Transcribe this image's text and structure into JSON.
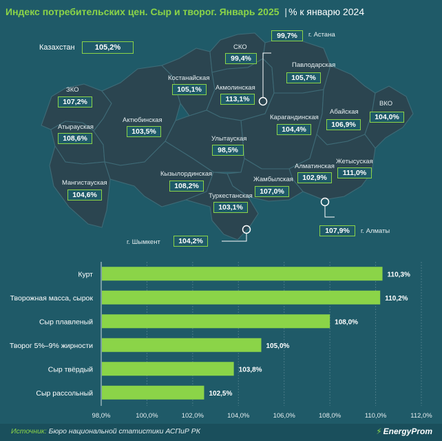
{
  "header": {
    "title": "Индекс потребительских цен. Сыр и творог. Январь 2025",
    "separator": "|",
    "subtitle": "% к январю 2024"
  },
  "country": {
    "label": "Казахстан",
    "value": "105,2%"
  },
  "regions": [
    {
      "id": "zko",
      "name": "ЗКО",
      "value": "107,2%"
    },
    {
      "id": "atyrau",
      "name": "Атырауская",
      "value": "108,6%"
    },
    {
      "id": "mangystau",
      "name": "Мангистауская",
      "value": "104,6%"
    },
    {
      "id": "aktobe",
      "name": "Актюбинская",
      "value": "103,5%"
    },
    {
      "id": "kostanay",
      "name": "Костанайская",
      "value": "105,1%"
    },
    {
      "id": "sko",
      "name": "СКО",
      "value": "99,4%"
    },
    {
      "id": "astana",
      "name": "г. Астана",
      "value": "99,7%"
    },
    {
      "id": "akmola",
      "name": "Акмолинская",
      "value": "113,1%"
    },
    {
      "id": "pavlodar",
      "name": "Павлодарская",
      "value": "105,7%"
    },
    {
      "id": "karaganda",
      "name": "Карагандинская",
      "value": "104,4%"
    },
    {
      "id": "ulytau",
      "name": "Улытауская",
      "value": "98,5%"
    },
    {
      "id": "abai",
      "name": "Абайская",
      "value": "106,9%"
    },
    {
      "id": "vko",
      "name": "ВКО",
      "value": "104,0%"
    },
    {
      "id": "kyzylorda",
      "name": "Кызылординская",
      "value": "108,2%"
    },
    {
      "id": "almaty_reg",
      "name": "Алматинская",
      "value": "102,9%"
    },
    {
      "id": "zhetysu",
      "name": "Жетысуская",
      "value": "111,0%"
    },
    {
      "id": "zhambyl",
      "name": "Жамбылская",
      "value": "107,0%"
    },
    {
      "id": "turkestan",
      "name": "Туркестанская",
      "value": "103,1%"
    },
    {
      "id": "shymkent",
      "name": "г. Шымкент",
      "value": "104,2%"
    },
    {
      "id": "almaty_city",
      "name": "г. Алматы",
      "value": "107,9%"
    }
  ],
  "chart_data": {
    "type": "bar",
    "orientation": "horizontal",
    "categories": [
      "Курт",
      "Творожная масса, сырок",
      "Сыр плавленый",
      "Творог 5%–9% жирности",
      "Сыр твёрдый",
      "Сыр рассольный"
    ],
    "values": [
      110.3,
      110.2,
      108.0,
      105.0,
      103.8,
      102.5
    ],
    "value_labels": [
      "110,3%",
      "110,2%",
      "108,0%",
      "105,0%",
      "103,8%",
      "102,5%"
    ],
    "xlim": [
      98.0,
      112.0
    ],
    "x_ticks": [
      98,
      100,
      102,
      104,
      106,
      108,
      110,
      112
    ],
    "x_tick_labels": [
      "98,0%",
      "100,0%",
      "102,0%",
      "104,0%",
      "106,0%",
      "108,0%",
      "110,0%",
      "112,0%"
    ],
    "bar_color": "#8bd448",
    "grid": true
  },
  "footer": {
    "source_label": "Источник:",
    "source_text": "Бюро национальной статистики АСПиР РК",
    "brand": "EnergyProm"
  },
  "colors": {
    "background": "#1f5a68",
    "accent": "#8bd448",
    "map_fill": "#2b4550",
    "map_border": "#3f6b77"
  }
}
